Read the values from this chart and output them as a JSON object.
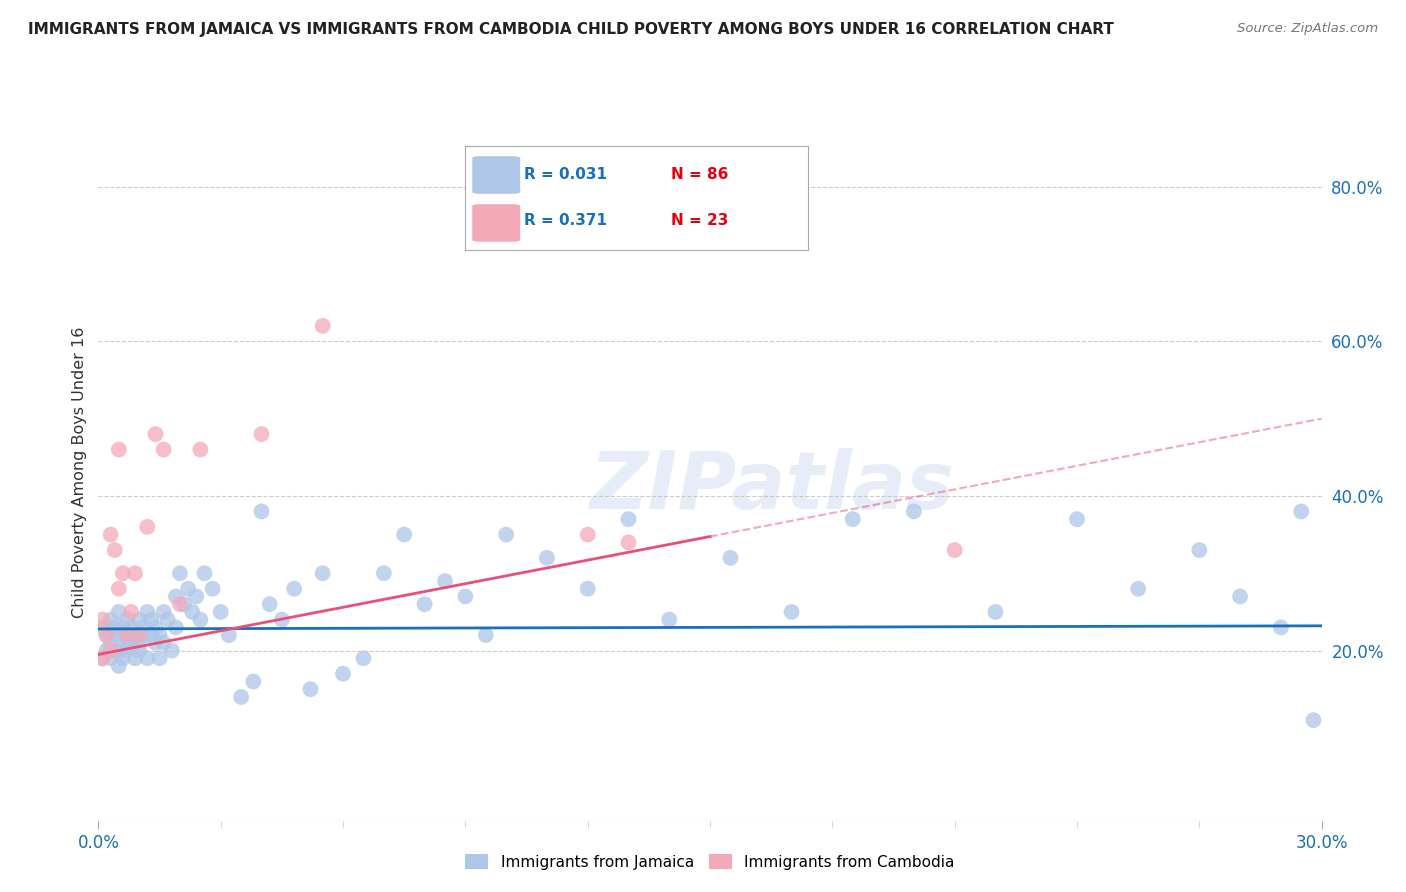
{
  "title": "IMMIGRANTS FROM JAMAICA VS IMMIGRANTS FROM CAMBODIA CHILD POVERTY AMONG BOYS UNDER 16 CORRELATION CHART",
  "source": "Source: ZipAtlas.com",
  "ylabel": "Child Poverty Among Boys Under 16",
  "xlim": [
    0.0,
    0.3
  ],
  "ylim": [
    -0.02,
    0.88
  ],
  "x_ticks": [
    0.0,
    0.3
  ],
  "x_tick_labels": [
    "0.0%",
    "30.0%"
  ],
  "y_ticks_right": [
    0.2,
    0.4,
    0.6,
    0.8
  ],
  "y_tick_labels_right": [
    "20.0%",
    "40.0%",
    "60.0%",
    "80.0%"
  ],
  "grid_color": "#cccccc",
  "background_color": "#ffffff",
  "watermark": "ZIPatlas",
  "watermark_color": "#aec6e8",
  "jamaica_color": "#aec6e8",
  "cambodia_color": "#f4a9b8",
  "jamaica_R": 0.031,
  "jamaica_N": 86,
  "cambodia_R": 0.371,
  "cambodia_N": 23,
  "legend_R_color": "#1a6fba",
  "legend_N_color": "#e8000d",
  "jamaica_line_color": "#1a6fba",
  "cambodia_line_color": "#e8507a",
  "cambodia_line_solid_end": 0.15,
  "jamaica_scatter_x": [
    0.001,
    0.001,
    0.002,
    0.002,
    0.003,
    0.003,
    0.003,
    0.004,
    0.004,
    0.004,
    0.005,
    0.005,
    0.005,
    0.006,
    0.006,
    0.006,
    0.007,
    0.007,
    0.007,
    0.008,
    0.008,
    0.008,
    0.009,
    0.009,
    0.01,
    0.01,
    0.01,
    0.011,
    0.011,
    0.012,
    0.012,
    0.013,
    0.013,
    0.014,
    0.014,
    0.015,
    0.015,
    0.016,
    0.016,
    0.017,
    0.018,
    0.019,
    0.019,
    0.02,
    0.021,
    0.022,
    0.023,
    0.024,
    0.025,
    0.026,
    0.028,
    0.03,
    0.032,
    0.035,
    0.038,
    0.04,
    0.042,
    0.045,
    0.048,
    0.052,
    0.055,
    0.06,
    0.065,
    0.07,
    0.075,
    0.08,
    0.085,
    0.09,
    0.095,
    0.1,
    0.11,
    0.12,
    0.13,
    0.14,
    0.155,
    0.17,
    0.185,
    0.2,
    0.22,
    0.24,
    0.255,
    0.27,
    0.28,
    0.29,
    0.295,
    0.298
  ],
  "jamaica_scatter_y": [
    0.23,
    0.19,
    0.22,
    0.2,
    0.21,
    0.24,
    0.19,
    0.23,
    0.2,
    0.22,
    0.25,
    0.2,
    0.18,
    0.23,
    0.22,
    0.19,
    0.24,
    0.21,
    0.2,
    0.22,
    0.21,
    0.23,
    0.19,
    0.22,
    0.24,
    0.21,
    0.2,
    0.23,
    0.22,
    0.25,
    0.19,
    0.22,
    0.24,
    0.21,
    0.23,
    0.19,
    0.22,
    0.25,
    0.21,
    0.24,
    0.2,
    0.23,
    0.27,
    0.3,
    0.26,
    0.28,
    0.25,
    0.27,
    0.24,
    0.3,
    0.28,
    0.25,
    0.22,
    0.14,
    0.16,
    0.38,
    0.26,
    0.24,
    0.28,
    0.15,
    0.3,
    0.17,
    0.19,
    0.3,
    0.35,
    0.26,
    0.29,
    0.27,
    0.22,
    0.35,
    0.32,
    0.28,
    0.37,
    0.24,
    0.32,
    0.25,
    0.37,
    0.38,
    0.25,
    0.37,
    0.28,
    0.33,
    0.27,
    0.23,
    0.38,
    0.11
  ],
  "cambodia_scatter_x": [
    0.001,
    0.001,
    0.002,
    0.003,
    0.003,
    0.004,
    0.005,
    0.005,
    0.006,
    0.007,
    0.008,
    0.009,
    0.01,
    0.012,
    0.014,
    0.016,
    0.02,
    0.025,
    0.04,
    0.055,
    0.12,
    0.13,
    0.21
  ],
  "cambodia_scatter_y": [
    0.24,
    0.19,
    0.22,
    0.2,
    0.35,
    0.33,
    0.28,
    0.46,
    0.3,
    0.22,
    0.25,
    0.3,
    0.22,
    0.36,
    0.48,
    0.46,
    0.26,
    0.46,
    0.48,
    0.62,
    0.35,
    0.34,
    0.33
  ],
  "jamaica_line_y0": 0.228,
  "jamaica_line_y1": 0.232,
  "cambodia_line_y0": 0.195,
  "cambodia_line_y1": 0.5
}
